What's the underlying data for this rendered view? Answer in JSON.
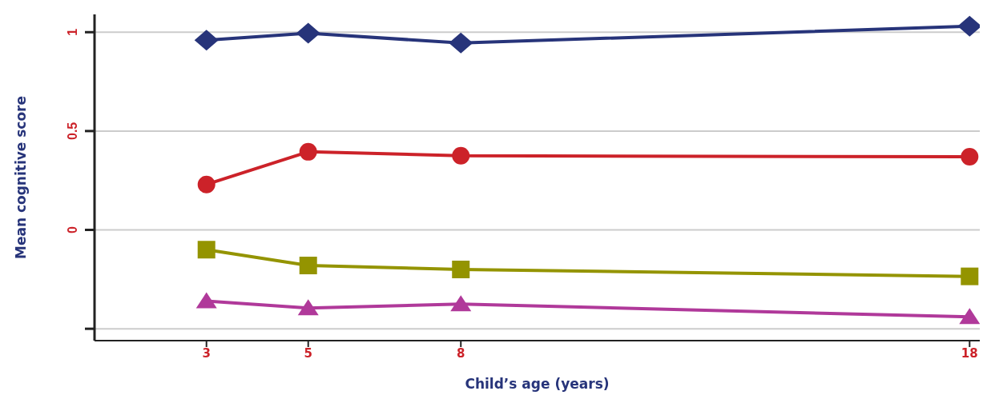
{
  "chart_data": {
    "type": "line",
    "xlabel": "Child’s age (years)",
    "ylabel": "Mean cognitive score",
    "x": [
      3,
      5,
      8,
      18
    ],
    "series": [
      {
        "color": "#27347a",
        "marker": "diamond",
        "values": [
          0.96,
          0.995,
          0.945,
          1.03
        ]
      },
      {
        "color": "#cc2229",
        "marker": "circle",
        "values": [
          0.23,
          0.395,
          0.375,
          0.37
        ]
      },
      {
        "color": "#949400",
        "marker": "square",
        "values": [
          -0.1,
          -0.18,
          -0.2,
          -0.235
        ]
      },
      {
        "color": "#b0399a",
        "marker": "triangle",
        "values": [
          -0.36,
          -0.395,
          -0.375,
          -0.44
        ]
      }
    ],
    "xlim": [
      0.8,
      18.2
    ],
    "xticks": [
      3,
      5,
      8,
      18
    ],
    "ylim": [
      -0.56,
      1.09
    ],
    "yticks": [
      {
        "value": -0.5,
        "label": null
      },
      0,
      0.5,
      1
    ],
    "grid": "y",
    "legend": false,
    "line_style": "solid"
  }
}
